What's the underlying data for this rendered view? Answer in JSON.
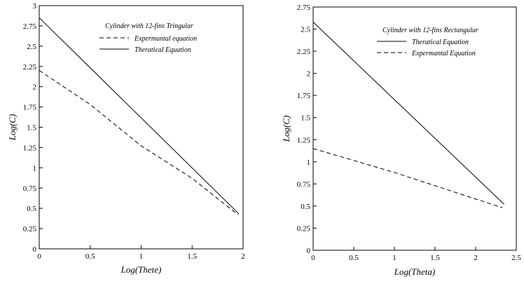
{
  "chart_data": [
    {
      "type": "line",
      "title": "",
      "xlabel": "Log(Thete)",
      "ylabel": "Log(C)",
      "xlim": [
        0,
        2
      ],
      "ylim": [
        0,
        3
      ],
      "x_ticks": [
        "0",
        "0.5",
        "1",
        "1.5",
        "2"
      ],
      "y_ticks": [
        "0",
        "0.25",
        "0.5",
        "0.75",
        "1",
        "1.25",
        "1.5",
        "1.75",
        "2",
        "2.25",
        "2.5",
        "2.75",
        "3"
      ],
      "grid": false,
      "legend": {
        "title": "Cylinder with 12-fins Tringular",
        "position": "top-right"
      },
      "series": [
        {
          "name": "Expermantal equation",
          "style": "dashed",
          "color": "#000000",
          "points": [
            [
              0,
              2.2
            ],
            [
              0.5,
              1.78
            ],
            [
              1,
              1.27
            ],
            [
              1.5,
              0.87
            ],
            [
              1.95,
              0.42
            ]
          ]
        },
        {
          "name": "Theratical Equation",
          "style": "solid",
          "color": "#000000",
          "points": [
            [
              0,
              2.85
            ],
            [
              1.96,
              0.43
            ]
          ]
        }
      ]
    },
    {
      "type": "line",
      "title": "",
      "xlabel": "Log(Theta)",
      "ylabel": "Log(C)",
      "xlim": [
        0,
        2.5
      ],
      "ylim": [
        0,
        2.75
      ],
      "x_ticks": [
        "0",
        "0.5",
        "1",
        "1.5",
        "2",
        "2.5"
      ],
      "y_ticks": [
        "0",
        "0.25",
        "0.5",
        "0.75",
        "1",
        "1.25",
        "1.5",
        "1.75",
        "2",
        "2.25",
        "2.5",
        "2.75"
      ],
      "grid": false,
      "legend": {
        "title": "Cylinder with 12-fins Rectangular",
        "position": "top-right"
      },
      "series": [
        {
          "name": "Theratical Equation",
          "style": "solid",
          "color": "#000000",
          "points": [
            [
              0,
              2.58
            ],
            [
              2.35,
              0.52
            ]
          ]
        },
        {
          "name": "Expermantal Equation",
          "style": "dashed",
          "color": "#000000",
          "points": [
            [
              0,
              1.15
            ],
            [
              1,
              0.88
            ],
            [
              2.33,
              0.48
            ]
          ]
        }
      ]
    }
  ]
}
